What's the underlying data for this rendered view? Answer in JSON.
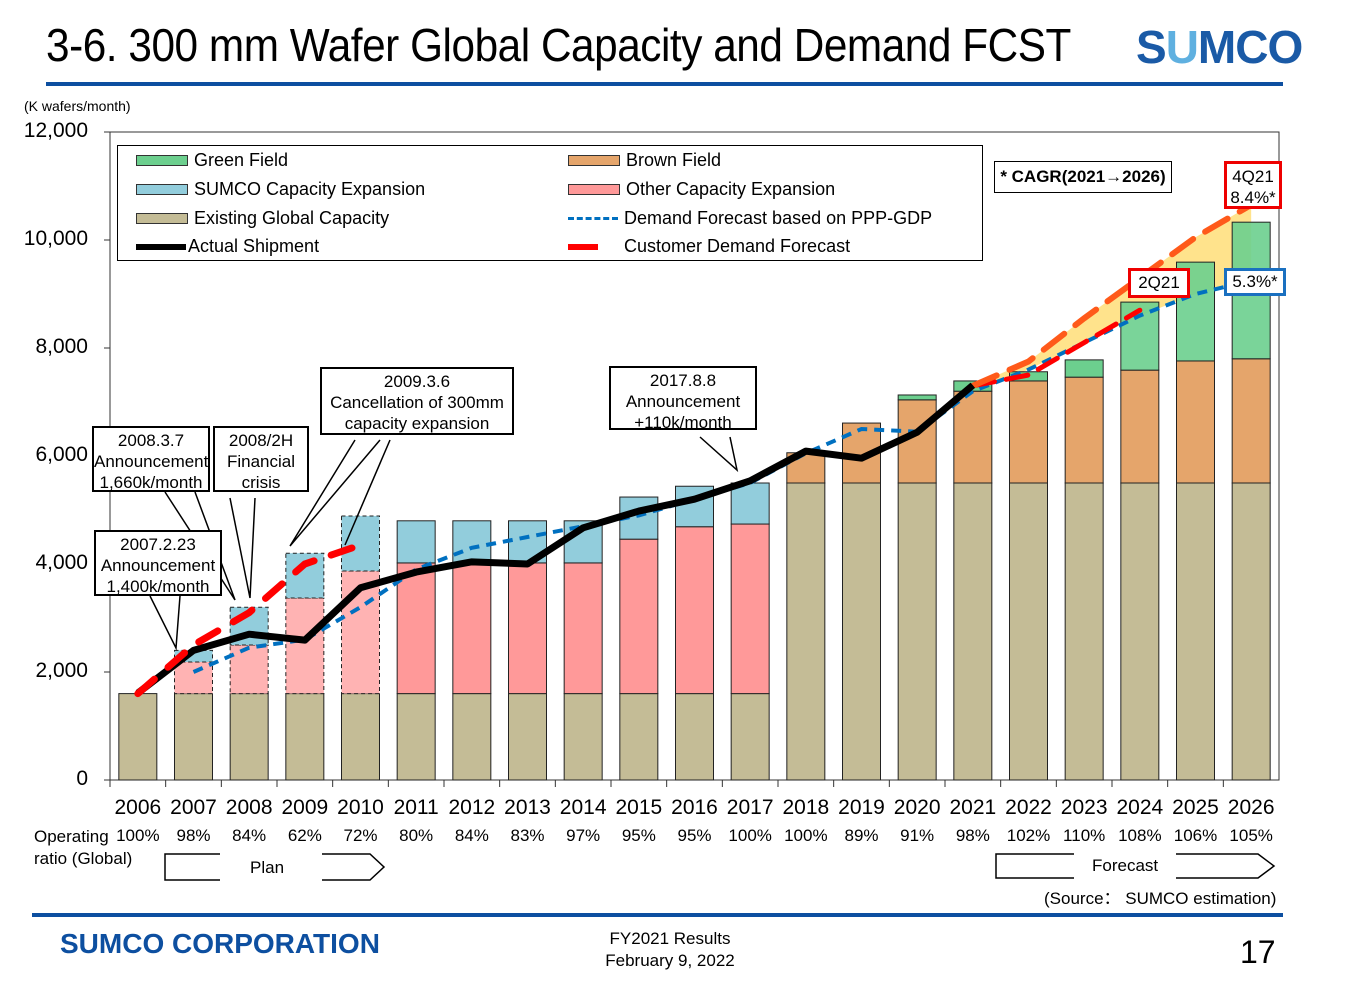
{
  "header": {
    "title": "3-6. 300 mm Wafer Global Capacity and Demand FCST",
    "logo_text": "SUMCO"
  },
  "chart_data": {
    "type": "bar",
    "title": "",
    "ylabel": "(K wafers/month)",
    "ylim": [
      0,
      12000
    ],
    "yticks": [
      "0",
      "2,000",
      "4,000",
      "6,000",
      "8,000",
      "10,000",
      "12,000"
    ],
    "categories": [
      "2006",
      "2007",
      "2008",
      "2009",
      "2010",
      "2011",
      "2012",
      "2013",
      "2014",
      "2015",
      "2016",
      "2017",
      "2018",
      "2019",
      "2020",
      "2021",
      "2022",
      "2023",
      "2024",
      "2025",
      "2026"
    ],
    "stack_series": [
      {
        "name": "Existing Global Capacity",
        "color": "#c4bc96",
        "values": [
          1600,
          1600,
          1600,
          1600,
          1600,
          1600,
          1600,
          1600,
          1600,
          1600,
          1600,
          1600,
          5500,
          5500,
          5500,
          5500,
          5500,
          5500,
          5500,
          5500,
          5500
        ]
      },
      {
        "name": "Other Capacity Expansion",
        "color": "#ff9999",
        "values": [
          0,
          585,
          900,
          1770,
          2270,
          2420,
          2420,
          2420,
          2420,
          2860,
          3090,
          3140,
          0,
          0,
          0,
          0,
          0,
          0,
          0,
          0,
          0
        ]
      },
      {
        "name": "SUMCO Capacity Expansion",
        "color": "#92cddc",
        "values": [
          0,
          215,
          700,
          830,
          1020,
          780,
          780,
          780,
          780,
          780,
          750,
          760,
          0,
          0,
          0,
          0,
          0,
          0,
          0,
          0,
          0
        ]
      },
      {
        "name": "Brown Field",
        "color": "#e5a56b",
        "values": [
          0,
          0,
          0,
          0,
          0,
          0,
          0,
          0,
          0,
          0,
          0,
          0,
          560,
          1110,
          1540,
          1700,
          1890,
          1960,
          2090,
          2260,
          2300
        ]
      },
      {
        "name": "Green Field",
        "color": "#6ccf8e",
        "values": [
          0,
          0,
          0,
          0,
          0,
          0,
          0,
          0,
          0,
          0,
          0,
          0,
          0,
          0,
          90,
          190,
          170,
          320,
          1260,
          1830,
          2530
        ]
      }
    ],
    "plan_years": [
      "2006",
      "2007",
      "2008",
      "2009",
      "2010"
    ],
    "line_series": [
      {
        "name": "Actual Shipment",
        "color": "#000000",
        "x": [
          "2006",
          "2007",
          "2008",
          "2009",
          "2010",
          "2011",
          "2012",
          "2013",
          "2014",
          "2015",
          "2016",
          "2017",
          "2018",
          "2019",
          "2020",
          "2021"
        ],
        "values": [
          1610,
          2400,
          2700,
          2590,
          3560,
          3850,
          4040,
          4000,
          4670,
          4980,
          5200,
          5540,
          6090,
          5960,
          6440,
          7310
        ]
      },
      {
        "name": "Demand Forecast based on PPP-GDP",
        "color": "#0070c0",
        "x": [
          "2007",
          "2008",
          "2009",
          "2010",
          "2011",
          "2012",
          "2013",
          "2014",
          "2015",
          "2016",
          "2017",
          "2018",
          "2019",
          "2020",
          "2021",
          "2022",
          "2023",
          "2024",
          "2025",
          "2026"
        ],
        "values": [
          2000,
          2450,
          2600,
          3200,
          3900,
          4300,
          4500,
          4700,
          4900,
          5200,
          5500,
          6050,
          6500,
          6450,
          7200,
          7600,
          8100,
          8600,
          9000,
          9250
        ]
      },
      {
        "name": "Customer Demand Forecast",
        "color": "#ff0000",
        "x": [
          "2006",
          "2007",
          "2008",
          "2009",
          "2010"
        ],
        "values": [
          1600,
          2500,
          3100,
          4000,
          4350
        ]
      },
      {
        "name": "Customer Demand Forecast 2Q21",
        "color": "#ff0000",
        "x": [
          "2021",
          "2022",
          "2023",
          "2024"
        ],
        "values": [
          7300,
          7500,
          8100,
          8700
        ]
      },
      {
        "name": "Customer Demand Forecast 4Q21",
        "color": "#ff5a1a",
        "x": [
          "2021",
          "2022",
          "2023",
          "2024",
          "2025",
          "2026"
        ],
        "values": [
          7300,
          7750,
          8550,
          9300,
          10050,
          10650
        ]
      }
    ],
    "legend_placement": "top-left",
    "legend": {
      "green_field": "Green Field",
      "brown_field": "Brown Field",
      "sumco_exp": "SUMCO Capacity Expansion",
      "other_exp": "Other Capacity Expansion",
      "existing": "Existing Global Capacity",
      "demand_ppp": "Demand Forecast based on PPP-GDP",
      "actual": "Actual Shipment",
      "customer": "Customer Demand Forecast"
    },
    "cagr_note": "* CAGR(2021→2026)",
    "labels": {
      "q4": "4Q21",
      "q4_rate": "8.4%*",
      "q2": "2Q21",
      "ppp_rate": "5.3%*"
    },
    "operating_ratio_label_1": "Operating",
    "operating_ratio_label_2": "ratio  (Global)",
    "operating_ratio": [
      "100%",
      "98%",
      "84%",
      "62%",
      "72%",
      "80%",
      "84%",
      "83%",
      "97%",
      "95%",
      "95%",
      "100%",
      "100%",
      "89%",
      "91%",
      "98%",
      "102%",
      "110%",
      "108%",
      "106%",
      "105%"
    ],
    "plan_label": "Plan",
    "forecast_label": "Forecast",
    "source": "(Source： SUMCO estimation)",
    "callouts": [
      {
        "l1": "2007.2.23",
        "l2": "Announcement",
        "l3": "1,400k/month"
      },
      {
        "l1": "2008.3.7",
        "l2": "Announcement",
        "l3": "1,660k/month"
      },
      {
        "l1": "2008/2H",
        "l2": "Financial",
        "l3": "crisis"
      },
      {
        "l1": "2009.3.6",
        "l2": "Cancellation  of 300mm",
        "l3": "capacity  expansion"
      },
      {
        "l1": "2017.8.8",
        "l2": "Announcement",
        "l3": "+110k/month"
      }
    ]
  },
  "footer": {
    "company": "SUMCO CORPORATION",
    "line1": "FY2021 Results",
    "line2": "February 9, 2022",
    "page": "17"
  }
}
